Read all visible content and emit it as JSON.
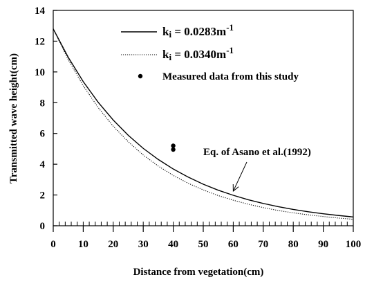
{
  "chart_data": {
    "type": "line",
    "xlabel": "Distance from vegetation(cm)",
    "ylabel": "Transmitted wave height(cm)",
    "xlim": [
      0,
      100
    ],
    "ylim": [
      0,
      14
    ],
    "xticks": [
      0,
      10,
      20,
      30,
      40,
      50,
      60,
      70,
      80,
      90,
      100
    ],
    "yticks": [
      0,
      2,
      4,
      6,
      8,
      10,
      12,
      14
    ],
    "x_minor_step": 2,
    "grid": false,
    "legend_position": "top-right",
    "series": [
      {
        "name": "ki = 0.0283m-1",
        "label_main": "k",
        "label_sub": "i",
        "label_eq": " = 0.0283m",
        "label_sup": "-1",
        "style": "solid",
        "color": "#000000",
        "x": [
          0,
          5,
          10,
          15,
          20,
          25,
          30,
          35,
          40,
          45,
          50,
          55,
          60,
          65,
          70,
          75,
          80,
          85,
          90,
          95,
          100
        ],
        "y": [
          12.8,
          10.95,
          9.37,
          8.02,
          6.87,
          5.88,
          5.03,
          4.31,
          3.69,
          3.16,
          2.7,
          2.31,
          1.98,
          1.69,
          1.45,
          1.24,
          1.06,
          0.91,
          0.78,
          0.67,
          0.57
        ]
      },
      {
        "name": "ki = 0.0340m-1",
        "label_main": "k",
        "label_sub": "i",
        "label_eq": " = 0.0340m",
        "label_sup": "-1",
        "style": "dotted",
        "color": "#000000",
        "x": [
          0,
          5,
          10,
          15,
          20,
          25,
          30,
          35,
          40,
          45,
          50,
          55,
          60,
          65,
          70,
          75,
          80,
          85,
          90,
          95,
          100
        ],
        "y": [
          12.8,
          10.8,
          9.1,
          7.68,
          6.47,
          5.46,
          4.6,
          3.88,
          3.27,
          2.76,
          2.33,
          1.96,
          1.66,
          1.4,
          1.18,
          0.99,
          0.84,
          0.71,
          0.6,
          0.5,
          0.42
        ]
      },
      {
        "name": "Measured data from this study",
        "style": "marker",
        "color": "#000000",
        "points": [
          [
            40,
            5.2
          ],
          [
            40,
            4.95
          ]
        ]
      }
    ],
    "annotation": {
      "text": "Eq. of Asano et al.(1992)",
      "arrow_to": [
        60,
        2.25
      ]
    }
  }
}
